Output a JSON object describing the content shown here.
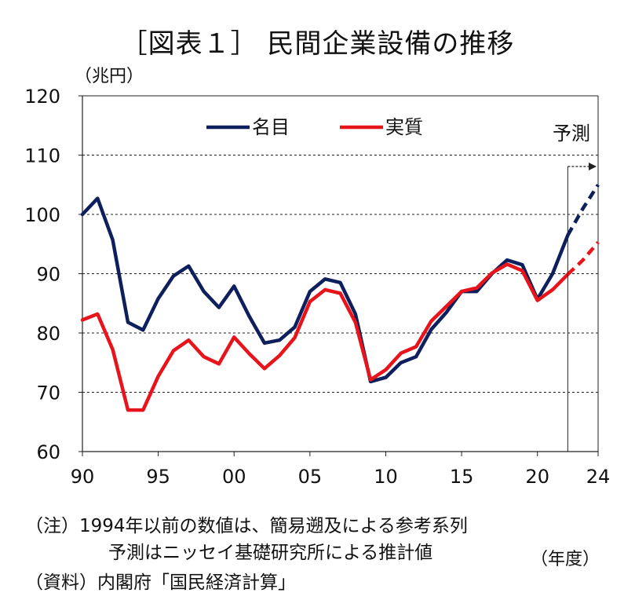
{
  "chart_data": {
    "type": "line",
    "title": "［図表１］ 民間企業設備の推移",
    "ylabel": "（兆円）",
    "xlabel": "（年度）",
    "ylim": [
      60,
      120
    ],
    "yticks": [
      60,
      70,
      80,
      90,
      100,
      110,
      120
    ],
    "xlim": [
      1990,
      2024
    ],
    "xticks": [
      {
        "year": 1990,
        "label": "90"
      },
      {
        "year": 1995,
        "label": "95"
      },
      {
        "year": 2000,
        "label": "00"
      },
      {
        "year": 2005,
        "label": "05"
      },
      {
        "year": 2010,
        "label": "10"
      },
      {
        "year": 2015,
        "label": "15"
      },
      {
        "year": 2020,
        "label": "20"
      },
      {
        "year": 2024,
        "label": "24"
      }
    ],
    "grid": "horizontal-dashed",
    "legend_position": "top",
    "forecast_start": 2022,
    "forecast_label": "予測",
    "x": [
      1990,
      1991,
      1992,
      1993,
      1994,
      1995,
      1996,
      1997,
      1998,
      1999,
      2000,
      2001,
      2002,
      2003,
      2004,
      2005,
      2006,
      2007,
      2008,
      2009,
      2010,
      2011,
      2012,
      2013,
      2014,
      2015,
      2016,
      2017,
      2018,
      2019,
      2020,
      2021,
      2022,
      2023,
      2024
    ],
    "series": [
      {
        "name": "名目",
        "color": "#0d1f5c",
        "values": [
          100,
          102.7,
          95.7,
          81.8,
          80.5,
          85.8,
          89.6,
          91.3,
          87,
          84.3,
          87.9,
          82.8,
          78.3,
          78.8,
          81,
          87,
          89.1,
          88.5,
          83.2,
          71.8,
          72.5,
          75,
          76,
          80.6,
          83.5,
          87,
          87,
          90,
          92.3,
          91.5,
          85.7,
          90,
          96.5,
          101,
          105
        ]
      },
      {
        "name": "実質",
        "color": "#e8141b",
        "values": [
          82.2,
          83.2,
          77.2,
          67,
          67,
          72.7,
          77,
          78.8,
          76,
          74.8,
          79.3,
          76.5,
          74,
          76.2,
          79.2,
          85.3,
          87.3,
          86.7,
          81.8,
          72.1,
          73.8,
          76.6,
          77.7,
          82,
          84.5,
          87,
          87.6,
          90.1,
          91.6,
          90.5,
          85.5,
          87.3,
          89.9,
          92.3,
          95.3
        ]
      }
    ]
  },
  "notes": {
    "line1": "（注）1994年以前の数値は、簡易遡及による参考系列",
    "line2": "予測はニッセイ基礎研究所による推計値",
    "line3": "（資料）内閣府「国民経済計算」"
  }
}
